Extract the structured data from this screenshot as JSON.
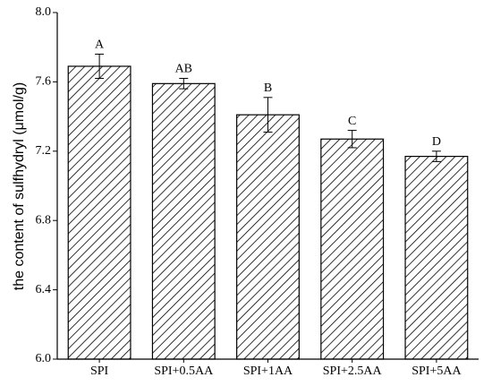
{
  "chart_data": {
    "type": "bar",
    "y_label": "the content of sulfhydryl (μmol/g)",
    "categories": [
      "SPI",
      "SPI+0.5AA",
      "SPI+1AA",
      "SPI+2.5AA",
      "SPI+5AA"
    ],
    "values": [
      7.69,
      7.59,
      7.41,
      7.27,
      7.17
    ],
    "errors": [
      0.07,
      0.03,
      0.1,
      0.05,
      0.03
    ],
    "annotations": [
      "A",
      "AB",
      "B",
      "C",
      "D"
    ],
    "color": "#000000",
    "ylim": [
      6.0,
      8.0
    ],
    "yticks": [
      {
        "value": 6.0,
        "label": "6.0"
      },
      6.4,
      6.8,
      7.2,
      7.6,
      {
        "value": 8.0,
        "label": "8.0"
      }
    ],
    "grid": false
  }
}
